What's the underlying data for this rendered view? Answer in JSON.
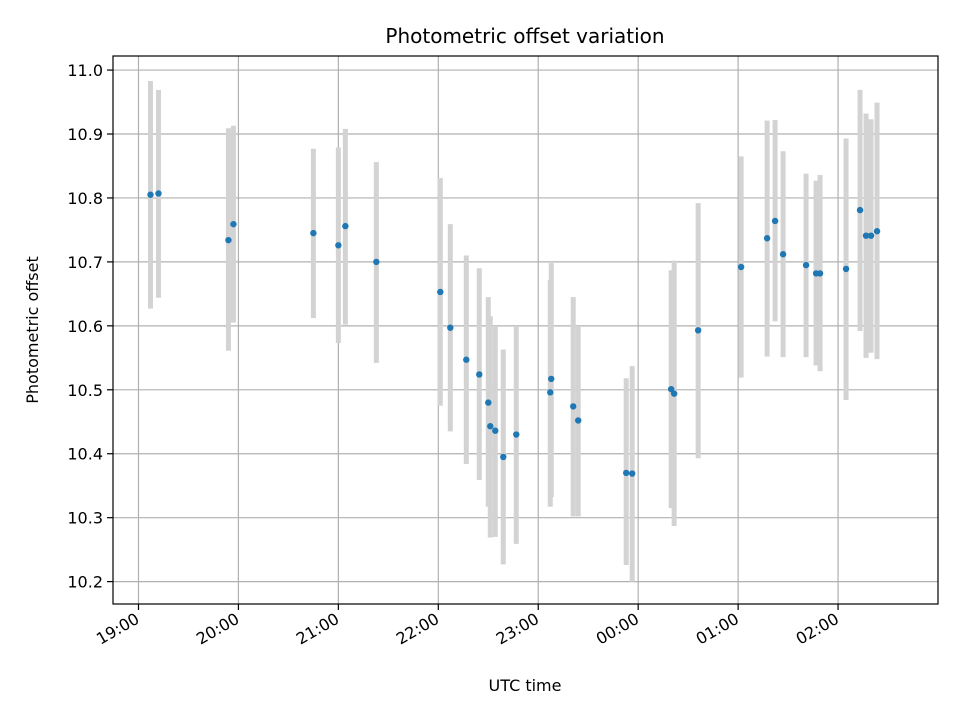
{
  "chart_data": {
    "type": "scatter",
    "title": "Photometric offset variation",
    "xlabel": "UTC time",
    "ylabel": "Photometric offset",
    "x_unit": "hours since 19:00 UTC",
    "x_ticks": [
      {
        "value": 0,
        "label": "19:00"
      },
      {
        "value": 1,
        "label": "20:00"
      },
      {
        "value": 2,
        "label": "21:00"
      },
      {
        "value": 3,
        "label": "22:00"
      },
      {
        "value": 4,
        "label": "23:00"
      },
      {
        "value": 5,
        "label": "00:00"
      },
      {
        "value": 6,
        "label": "01:00"
      },
      {
        "value": 7,
        "label": "02:00"
      }
    ],
    "y_ticks": [
      10.2,
      10.3,
      10.4,
      10.5,
      10.6,
      10.7,
      10.8,
      10.9,
      11.0
    ],
    "y_tick_labels": [
      "10.2",
      "10.3",
      "10.4",
      "10.5",
      "10.6",
      "10.7",
      "10.8",
      "10.9",
      "11.0"
    ],
    "xlim": [
      -0.255,
      8.0
    ],
    "ylim": [
      10.165,
      11.022
    ],
    "grid": true,
    "point_color": "#1f77b4",
    "errorbar_color": "#d3d3d3",
    "series": [
      {
        "points": [
          {
            "x": 0.12,
            "y": 10.805,
            "err_low": 10.627,
            "err_high": 10.983
          },
          {
            "x": 0.2,
            "y": 10.807,
            "err_low": 10.644,
            "err_high": 10.969
          },
          {
            "x": 0.9,
            "y": 10.734,
            "err_low": 10.561,
            "err_high": 10.909
          },
          {
            "x": 0.95,
            "y": 10.759,
            "err_low": 10.605,
            "err_high": 10.913
          },
          {
            "x": 1.75,
            "y": 10.745,
            "err_low": 10.612,
            "err_high": 10.877
          },
          {
            "x": 2.0,
            "y": 10.726,
            "err_low": 10.573,
            "err_high": 10.879
          },
          {
            "x": 2.07,
            "y": 10.756,
            "err_low": 10.602,
            "err_high": 10.908
          },
          {
            "x": 2.38,
            "y": 10.7,
            "err_low": 10.542,
            "err_high": 10.856
          },
          {
            "x": 3.02,
            "y": 10.653,
            "err_low": 10.475,
            "err_high": 10.831
          },
          {
            "x": 3.12,
            "y": 10.597,
            "err_low": 10.435,
            "err_high": 10.759
          },
          {
            "x": 3.28,
            "y": 10.547,
            "err_low": 10.384,
            "err_high": 10.71
          },
          {
            "x": 3.41,
            "y": 10.524,
            "err_low": 10.359,
            "err_high": 10.69
          },
          {
            "x": 3.5,
            "y": 10.48,
            "err_low": 10.317,
            "err_high": 10.645
          },
          {
            "x": 3.52,
            "y": 10.443,
            "err_low": 10.269,
            "err_high": 10.615
          },
          {
            "x": 3.57,
            "y": 10.436,
            "err_low": 10.27,
            "err_high": 10.6
          },
          {
            "x": 3.65,
            "y": 10.395,
            "err_low": 10.227,
            "err_high": 10.563
          },
          {
            "x": 3.78,
            "y": 10.43,
            "err_low": 10.259,
            "err_high": 10.6
          },
          {
            "x": 4.13,
            "y": 10.517,
            "err_low": 10.332,
            "err_high": 10.698
          },
          {
            "x": 4.12,
            "y": 10.496,
            "err_low": 10.317,
            "err_high": 10.672
          },
          {
            "x": 4.35,
            "y": 10.474,
            "err_low": 10.302,
            "err_high": 10.645
          },
          {
            "x": 4.4,
            "y": 10.452,
            "err_low": 10.302,
            "err_high": 10.6
          },
          {
            "x": 4.88,
            "y": 10.37,
            "err_low": 10.226,
            "err_high": 10.518
          },
          {
            "x": 4.94,
            "y": 10.369,
            "err_low": 10.2,
            "err_high": 10.537
          },
          {
            "x": 5.33,
            "y": 10.501,
            "err_low": 10.315,
            "err_high": 10.687
          },
          {
            "x": 5.36,
            "y": 10.494,
            "err_low": 10.287,
            "err_high": 10.702
          },
          {
            "x": 5.6,
            "y": 10.593,
            "err_low": 10.393,
            "err_high": 10.792
          },
          {
            "x": 6.03,
            "y": 10.692,
            "err_low": 10.519,
            "err_high": 10.865
          },
          {
            "x": 6.29,
            "y": 10.737,
            "err_low": 10.552,
            "err_high": 10.921
          },
          {
            "x": 6.37,
            "y": 10.764,
            "err_low": 10.607,
            "err_high": 10.922
          },
          {
            "x": 6.45,
            "y": 10.712,
            "err_low": 10.551,
            "err_high": 10.873
          },
          {
            "x": 6.68,
            "y": 10.695,
            "err_low": 10.551,
            "err_high": 10.838
          },
          {
            "x": 6.78,
            "y": 10.682,
            "err_low": 10.538,
            "err_high": 10.827
          },
          {
            "x": 6.82,
            "y": 10.682,
            "err_low": 10.529,
            "err_high": 10.836
          },
          {
            "x": 7.08,
            "y": 10.689,
            "err_low": 10.484,
            "err_high": 10.893
          },
          {
            "x": 7.22,
            "y": 10.781,
            "err_low": 10.592,
            "err_high": 10.969
          },
          {
            "x": 7.28,
            "y": 10.741,
            "err_low": 10.55,
            "err_high": 10.932
          },
          {
            "x": 7.33,
            "y": 10.741,
            "err_low": 10.558,
            "err_high": 10.923
          },
          {
            "x": 7.39,
            "y": 10.748,
            "err_low": 10.548,
            "err_high": 10.949
          }
        ]
      }
    ]
  }
}
